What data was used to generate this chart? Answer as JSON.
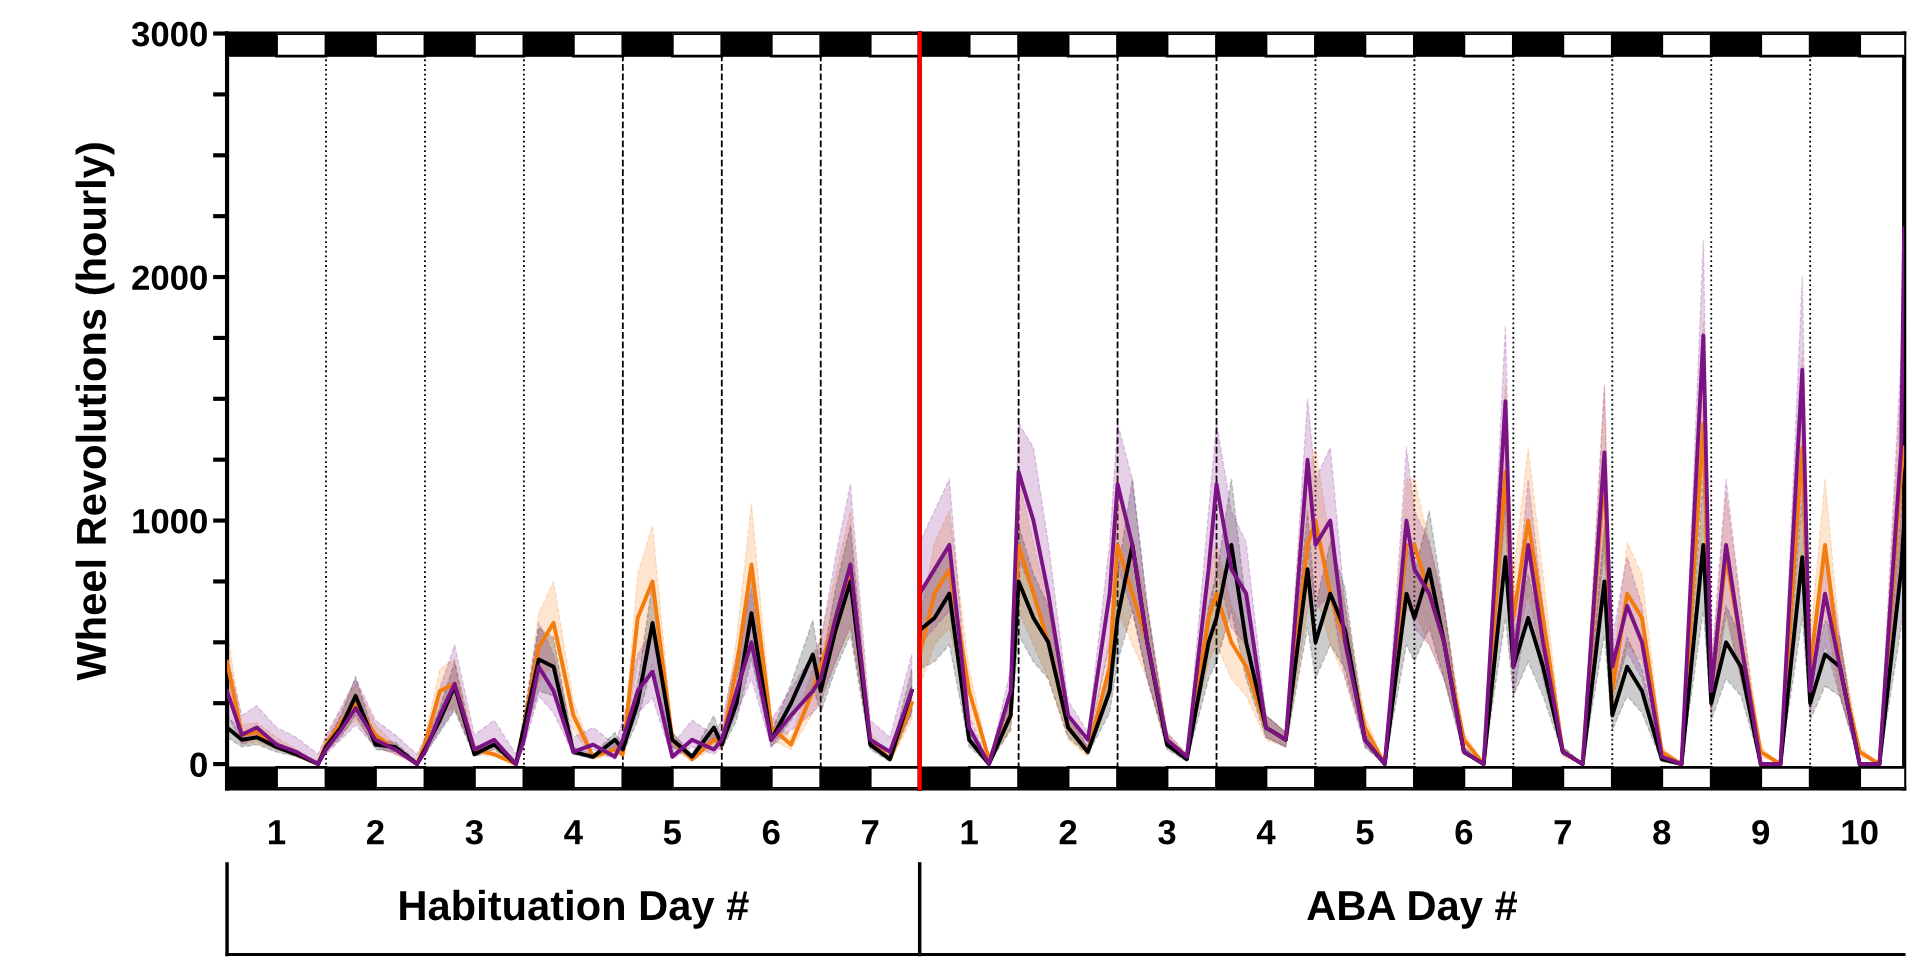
{
  "chart_data": [
    {
      "type": "line",
      "ylabel": "Wheel Revolutions (hourly)",
      "xlabel": "Habituation Day #",
      "x": [
        0,
        0.15,
        0.3,
        0.5,
        0.7,
        0.92,
        1,
        1.15,
        1.3,
        1.5,
        1.7,
        1.92,
        2,
        2.15,
        2.3,
        2.5,
        2.7,
        2.92,
        3,
        3.15,
        3.3,
        3.5,
        3.7,
        3.92,
        4,
        4.15,
        4.3,
        4.5,
        4.7,
        4.92,
        5,
        5.15,
        5.3,
        5.5,
        5.7,
        5.92,
        6,
        6.15,
        6.3,
        6.5,
        6.7,
        6.92
      ],
      "series": [
        {
          "color": "#f47c0e",
          "values": [
            420,
            120,
            130,
            80,
            40,
            0,
            80,
            170,
            250,
            120,
            60,
            0,
            80,
            300,
            330,
            60,
            40,
            0,
            150,
            480,
            580,
            200,
            30,
            60,
            40,
            600,
            750,
            100,
            20,
            100,
            80,
            400,
            820,
            150,
            80,
            300,
            400,
            600,
            800,
            100,
            20,
            250
          ],
          "upper": [
            550,
            160,
            170,
            110,
            60,
            10,
            110,
            220,
            330,
            160,
            80,
            10,
            110,
            390,
            430,
            80,
            60,
            10,
            200,
            620,
            750,
            260,
            40,
            80,
            60,
            780,
            980,
            130,
            30,
            130,
            110,
            520,
            1070,
            200,
            110,
            390,
            520,
            780,
            1040,
            130,
            30,
            330
          ],
          "lower": [
            290,
            80,
            90,
            60,
            30,
            0,
            60,
            120,
            180,
            80,
            40,
            0,
            60,
            210,
            230,
            40,
            30,
            0,
            100,
            340,
            410,
            140,
            20,
            40,
            30,
            420,
            530,
            70,
            10,
            70,
            60,
            280,
            570,
            100,
            60,
            210,
            280,
            420,
            560,
            70,
            10,
            180
          ]
        },
        {
          "color": "#000000",
          "values": [
            150,
            100,
            110,
            70,
            40,
            0,
            70,
            150,
            280,
            80,
            70,
            0,
            60,
            180,
            320,
            40,
            80,
            0,
            150,
            430,
            400,
            50,
            30,
            100,
            60,
            250,
            580,
            100,
            30,
            150,
            80,
            250,
            620,
            100,
            250,
            450,
            300,
            550,
            750,
            80,
            20,
            300
          ],
          "upper": [
            200,
            130,
            140,
            90,
            50,
            10,
            90,
            200,
            360,
            100,
            90,
            10,
            80,
            230,
            420,
            50,
            100,
            10,
            200,
            560,
            520,
            70,
            40,
            130,
            80,
            330,
            750,
            130,
            40,
            200,
            100,
            330,
            810,
            130,
            330,
            590,
            390,
            720,
            980,
            100,
            30,
            390
          ],
          "lower": [
            110,
            70,
            80,
            50,
            30,
            0,
            50,
            110,
            200,
            60,
            50,
            0,
            40,
            130,
            220,
            30,
            60,
            0,
            110,
            300,
            280,
            40,
            20,
            70,
            40,
            180,
            410,
            70,
            20,
            110,
            60,
            180,
            430,
            70,
            180,
            320,
            210,
            390,
            530,
            60,
            10,
            210
          ]
        },
        {
          "color": "#7b1385",
          "values": [
            300,
            120,
            150,
            80,
            50,
            0,
            60,
            140,
            230,
            100,
            60,
            0,
            50,
            200,
            330,
            60,
            100,
            0,
            100,
            400,
            300,
            50,
            80,
            30,
            100,
            300,
            380,
            30,
            100,
            60,
            100,
            300,
            500,
            100,
            200,
            300,
            350,
            600,
            820,
            100,
            50,
            300
          ],
          "upper": [
            450,
            200,
            240,
            150,
            110,
            40,
            120,
            230,
            350,
            180,
            120,
            40,
            110,
            310,
            490,
            120,
            180,
            40,
            180,
            580,
            450,
            110,
            150,
            80,
            180,
            450,
            550,
            80,
            180,
            120,
            180,
            450,
            720,
            180,
            310,
            450,
            510,
            850,
            1150,
            180,
            110,
            450
          ],
          "lower": [
            210,
            80,
            110,
            60,
            40,
            0,
            40,
            100,
            160,
            70,
            40,
            0,
            40,
            140,
            230,
            40,
            70,
            0,
            70,
            280,
            210,
            40,
            60,
            20,
            70,
            210,
            270,
            20,
            70,
            40,
            70,
            210,
            350,
            70,
            140,
            210,
            250,
            420,
            570,
            70,
            40,
            210
          ]
        }
      ],
      "xlim": [
        0,
        7
      ],
      "xticks": [
        {
          "value": 0.5,
          "label": "1"
        },
        {
          "value": 1.5,
          "label": "2"
        },
        {
          "value": 2.5,
          "label": "3"
        },
        {
          "value": 3.5,
          "label": "4"
        },
        {
          "value": 4.5,
          "label": "5"
        },
        {
          "value": 5.5,
          "label": "6"
        },
        {
          "value": 6.5,
          "label": "7"
        }
      ],
      "ylim": [
        -100,
        3000
      ],
      "yticks": [
        0,
        {
          "value": 250,
          "label": null
        },
        {
          "value": 500,
          "label": null
        },
        {
          "value": 750,
          "label": null
        },
        1000,
        {
          "value": 1250,
          "label": null
        },
        {
          "value": 1500,
          "label": null
        },
        {
          "value": 1750,
          "label": null
        },
        2000,
        {
          "value": 2250,
          "label": null
        },
        {
          "value": 2500,
          "label": null
        },
        {
          "value": 2750,
          "label": null
        },
        3000
      ],
      "ref_lines": [
        {
          "axis": "x",
          "value": 1,
          "line_style": "dotted",
          "color": "#000000"
        },
        {
          "axis": "x",
          "value": 2,
          "line_style": "dotted",
          "color": "#000000"
        },
        {
          "axis": "x",
          "value": 3,
          "line_style": "dotted",
          "color": "#000000"
        },
        {
          "axis": "x",
          "value": 4,
          "line_style": "dashed",
          "color": "#000000"
        },
        {
          "axis": "x",
          "value": 5,
          "line_style": "dashed",
          "color": "#000000"
        },
        {
          "axis": "x",
          "value": 6,
          "line_style": "dashed",
          "color": "#000000"
        }
      ],
      "grid": false,
      "marker": "none",
      "line_style": "solid"
    },
    {
      "type": "line",
      "xlabel": "ABA Day #",
      "x": [
        0,
        0.15,
        0.3,
        0.5,
        0.7,
        0.92,
        1,
        1.15,
        1.3,
        1.5,
        1.7,
        1.92,
        2,
        2.15,
        2.3,
        2.5,
        2.7,
        2.92,
        3,
        3.15,
        3.3,
        3.5,
        3.7,
        3.92,
        4,
        4.15,
        4.3,
        4.5,
        4.7,
        4.92,
        5,
        5.15,
        5.3,
        5.5,
        5.7,
        5.92,
        6,
        6.15,
        6.3,
        6.5,
        6.7,
        6.92,
        7,
        7.15,
        7.3,
        7.5,
        7.7,
        7.92,
        8,
        8.15,
        8.3,
        8.5,
        8.7,
        8.92,
        9,
        9.15,
        9.3,
        9.5,
        9.7,
        9.92,
        9.95
      ],
      "series": [
        {
          "color": "#f47c0e",
          "values": [
            450,
            700,
            800,
            300,
            20,
            200,
            900,
            700,
            500,
            150,
            50,
            400,
            900,
            700,
            500,
            100,
            30,
            600,
            700,
            500,
            400,
            150,
            100,
            900,
            1000,
            700,
            500,
            150,
            0,
            900,
            900,
            700,
            500,
            100,
            0,
            1200,
            600,
            1000,
            600,
            50,
            0,
            1200,
            300,
            700,
            600,
            50,
            0,
            1400,
            300,
            850,
            500,
            50,
            0,
            1300,
            400,
            900,
            400,
            50,
            0,
            1200,
            1300
          ],
          "upper": [
            590,
            910,
            1040,
            390,
            30,
            260,
            1170,
            910,
            650,
            200,
            70,
            520,
            1170,
            910,
            650,
            130,
            40,
            780,
            910,
            650,
            520,
            200,
            130,
            1170,
            1300,
            910,
            650,
            200,
            0,
            1170,
            1170,
            910,
            650,
            130,
            0,
            1560,
            780,
            1300,
            780,
            70,
            0,
            1560,
            390,
            910,
            780,
            70,
            0,
            1820,
            390,
            1110,
            650,
            70,
            0,
            1690,
            520,
            1170,
            520,
            70,
            0,
            1560,
            1690
          ],
          "lower": [
            320,
            490,
            560,
            210,
            10,
            140,
            630,
            490,
            350,
            100,
            30,
            280,
            630,
            490,
            350,
            70,
            20,
            420,
            490,
            350,
            280,
            100,
            70,
            630,
            700,
            490,
            350,
            100,
            0,
            630,
            630,
            490,
            350,
            70,
            0,
            840,
            420,
            700,
            420,
            30,
            0,
            840,
            210,
            490,
            420,
            30,
            0,
            980,
            210,
            600,
            350,
            30,
            0,
            910,
            280,
            630,
            280,
            30,
            0,
            840,
            910
          ]
        },
        {
          "color": "#000000",
          "values": [
            550,
            600,
            700,
            100,
            0,
            200,
            750,
            600,
            500,
            150,
            50,
            300,
            600,
            900,
            500,
            80,
            20,
            500,
            600,
            900,
            500,
            150,
            100,
            800,
            500,
            700,
            550,
            100,
            0,
            700,
            600,
            800,
            500,
            50,
            0,
            850,
            400,
            600,
            400,
            50,
            0,
            750,
            200,
            400,
            300,
            20,
            0,
            900,
            250,
            500,
            400,
            0,
            0,
            850,
            250,
            450,
            400,
            0,
            0,
            800,
            1000
          ],
          "upper": [
            720,
            780,
            910,
            130,
            0,
            260,
            980,
            780,
            650,
            200,
            70,
            390,
            780,
            1170,
            650,
            100,
            30,
            650,
            780,
            1170,
            650,
            200,
            130,
            1040,
            650,
            910,
            720,
            130,
            0,
            910,
            780,
            1040,
            650,
            70,
            0,
            1100,
            520,
            780,
            520,
            70,
            0,
            980,
            260,
            520,
            390,
            30,
            0,
            1170,
            330,
            650,
            520,
            0,
            0,
            1100,
            330,
            590,
            520,
            0,
            0,
            1040,
            1300
          ],
          "lower": [
            390,
            420,
            490,
            70,
            0,
            140,
            530,
            420,
            350,
            110,
            40,
            210,
            420,
            630,
            350,
            60,
            10,
            350,
            420,
            630,
            350,
            110,
            70,
            560,
            350,
            490,
            390,
            70,
            0,
            490,
            420,
            560,
            350,
            40,
            0,
            600,
            280,
            420,
            280,
            40,
            0,
            530,
            140,
            280,
            210,
            10,
            0,
            630,
            180,
            350,
            280,
            0,
            0,
            600,
            180,
            320,
            280,
            0,
            0,
            560,
            700
          ]
        },
        {
          "color": "#7b1385",
          "values": [
            700,
            800,
            900,
            150,
            0,
            300,
            1200,
            1000,
            700,
            200,
            100,
            700,
            1150,
            900,
            500,
            100,
            30,
            800,
            1150,
            800,
            700,
            150,
            100,
            1250,
            900,
            1000,
            500,
            100,
            0,
            1000,
            800,
            700,
            500,
            50,
            0,
            1490,
            400,
            900,
            500,
            50,
            0,
            1280,
            400,
            650,
            500,
            30,
            0,
            1760,
            300,
            900,
            500,
            0,
            0,
            1620,
            300,
            700,
            400,
            0,
            0,
            1300,
            2200
          ],
          "upper": [
            910,
            1040,
            1170,
            200,
            0,
            390,
            1400,
            1300,
            910,
            260,
            130,
            910,
            1400,
            1170,
            650,
            130,
            40,
            1040,
            1400,
            1040,
            910,
            200,
            130,
            1500,
            1170,
            1300,
            650,
            130,
            0,
            1300,
            1040,
            910,
            650,
            70,
            0,
            1800,
            520,
            1170,
            650,
            70,
            0,
            1550,
            520,
            850,
            650,
            40,
            0,
            2150,
            390,
            1170,
            650,
            0,
            0,
            2000,
            390,
            910,
            520,
            0,
            0,
            1690,
            2750
          ],
          "lower": [
            490,
            560,
            630,
            110,
            0,
            210,
            840,
            700,
            490,
            140,
            70,
            490,
            810,
            630,
            350,
            70,
            20,
            560,
            810,
            560,
            490,
            110,
            70,
            880,
            630,
            700,
            350,
            70,
            0,
            700,
            560,
            490,
            350,
            40,
            0,
            1040,
            280,
            630,
            350,
            40,
            0,
            900,
            280,
            460,
            350,
            20,
            0,
            1230,
            210,
            630,
            350,
            0,
            0,
            1130,
            210,
            490,
            280,
            0,
            0,
            910,
            1540
          ]
        }
      ],
      "xlim": [
        0,
        9.95
      ],
      "xticks": [
        {
          "value": 0.5,
          "label": "1"
        },
        {
          "value": 1.5,
          "label": "2"
        },
        {
          "value": 2.5,
          "label": "3"
        },
        {
          "value": 3.5,
          "label": "4"
        },
        {
          "value": 4.5,
          "label": "5"
        },
        {
          "value": 5.5,
          "label": "6"
        },
        {
          "value": 6.5,
          "label": "7"
        },
        {
          "value": 7.5,
          "label": "8"
        },
        {
          "value": 8.5,
          "label": "9"
        },
        {
          "value": 9.5,
          "label": "10"
        }
      ],
      "ylim": [
        -100,
        3000
      ],
      "tick_labels": "x",
      "ref_lines": [
        {
          "axis": "x",
          "value": 0,
          "line_style": "solid",
          "color": "#ff0000"
        },
        {
          "axis": "x",
          "value": 1,
          "line_style": "dashed",
          "color": "#000000"
        },
        {
          "axis": "x",
          "value": 2,
          "line_style": "dashed",
          "color": "#000000"
        },
        {
          "axis": "x",
          "value": 3,
          "line_style": "dashed",
          "color": "#000000"
        },
        {
          "axis": "x",
          "value": 4,
          "line_style": "dotted",
          "color": "#000000"
        },
        {
          "axis": "x",
          "value": 5,
          "line_style": "dotted",
          "color": "#000000"
        },
        {
          "axis": "x",
          "value": 6,
          "line_style": "dotted",
          "color": "#000000"
        },
        {
          "axis": "x",
          "value": 7,
          "line_style": "dotted",
          "color": "#000000"
        },
        {
          "axis": "x",
          "value": 8,
          "line_style": "dotted",
          "color": "#000000"
        },
        {
          "axis": "x",
          "value": 9,
          "line_style": "dotted",
          "color": "#000000"
        }
      ],
      "grid": false,
      "marker": "none",
      "line_style": "solid"
    }
  ]
}
